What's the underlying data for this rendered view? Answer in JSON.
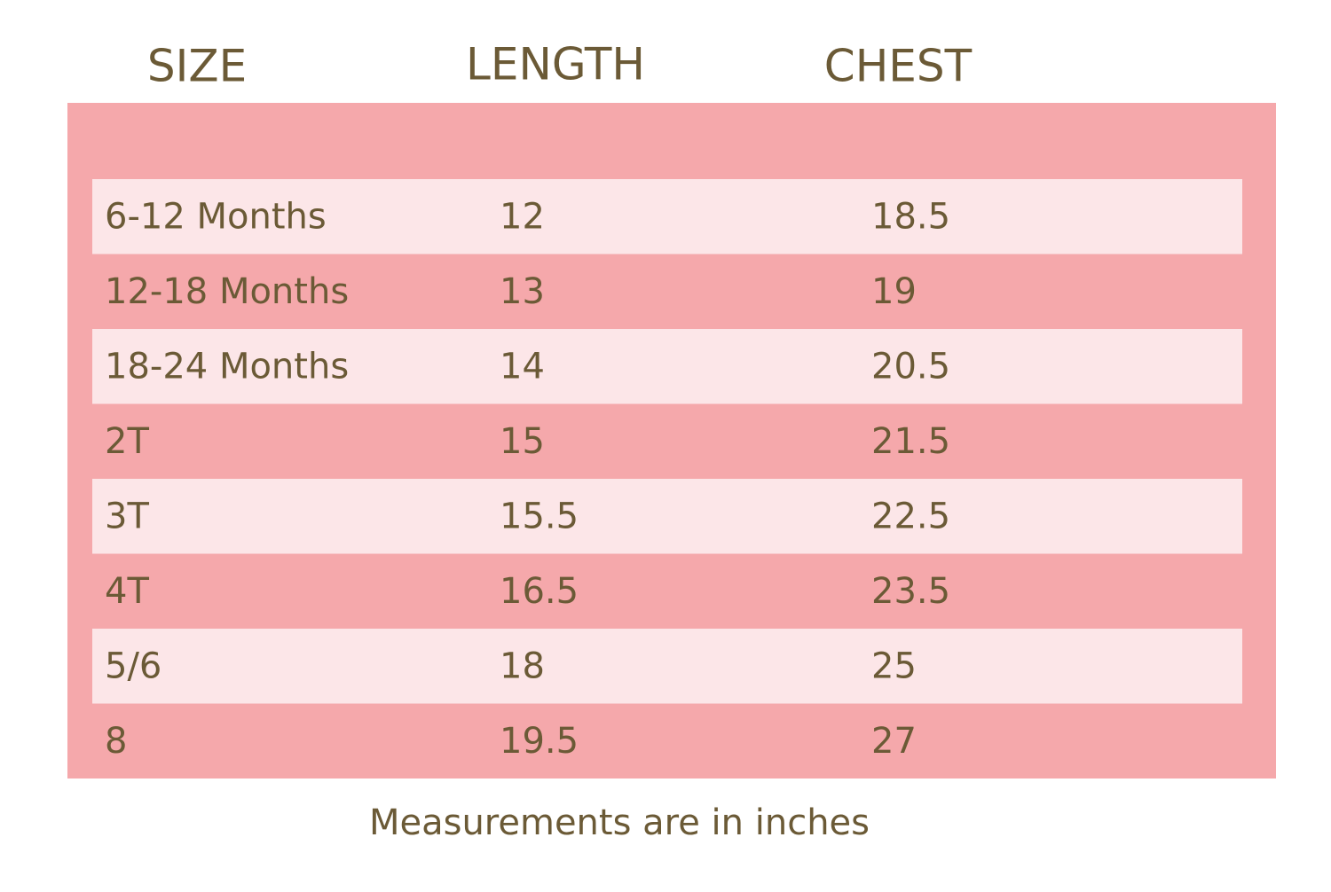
{
  "table": {
    "header": [
      "SIZE",
      "LENGTH",
      "CHEST"
    ],
    "rows": [
      [
        "6-12 Months",
        12,
        18.5
      ],
      [
        "12-18 Months",
        13,
        19
      ],
      [
        "18-24 Months",
        14,
        20.5
      ],
      [
        "2T",
        15,
        21.5
      ],
      [
        "3T",
        15.5,
        22.5
      ],
      [
        "4T",
        16.5,
        23.5
      ],
      [
        "5/6",
        18,
        25
      ],
      [
        "8",
        19.5,
        27
      ]
    ],
    "note": "Measurements are in inches"
  }
}
